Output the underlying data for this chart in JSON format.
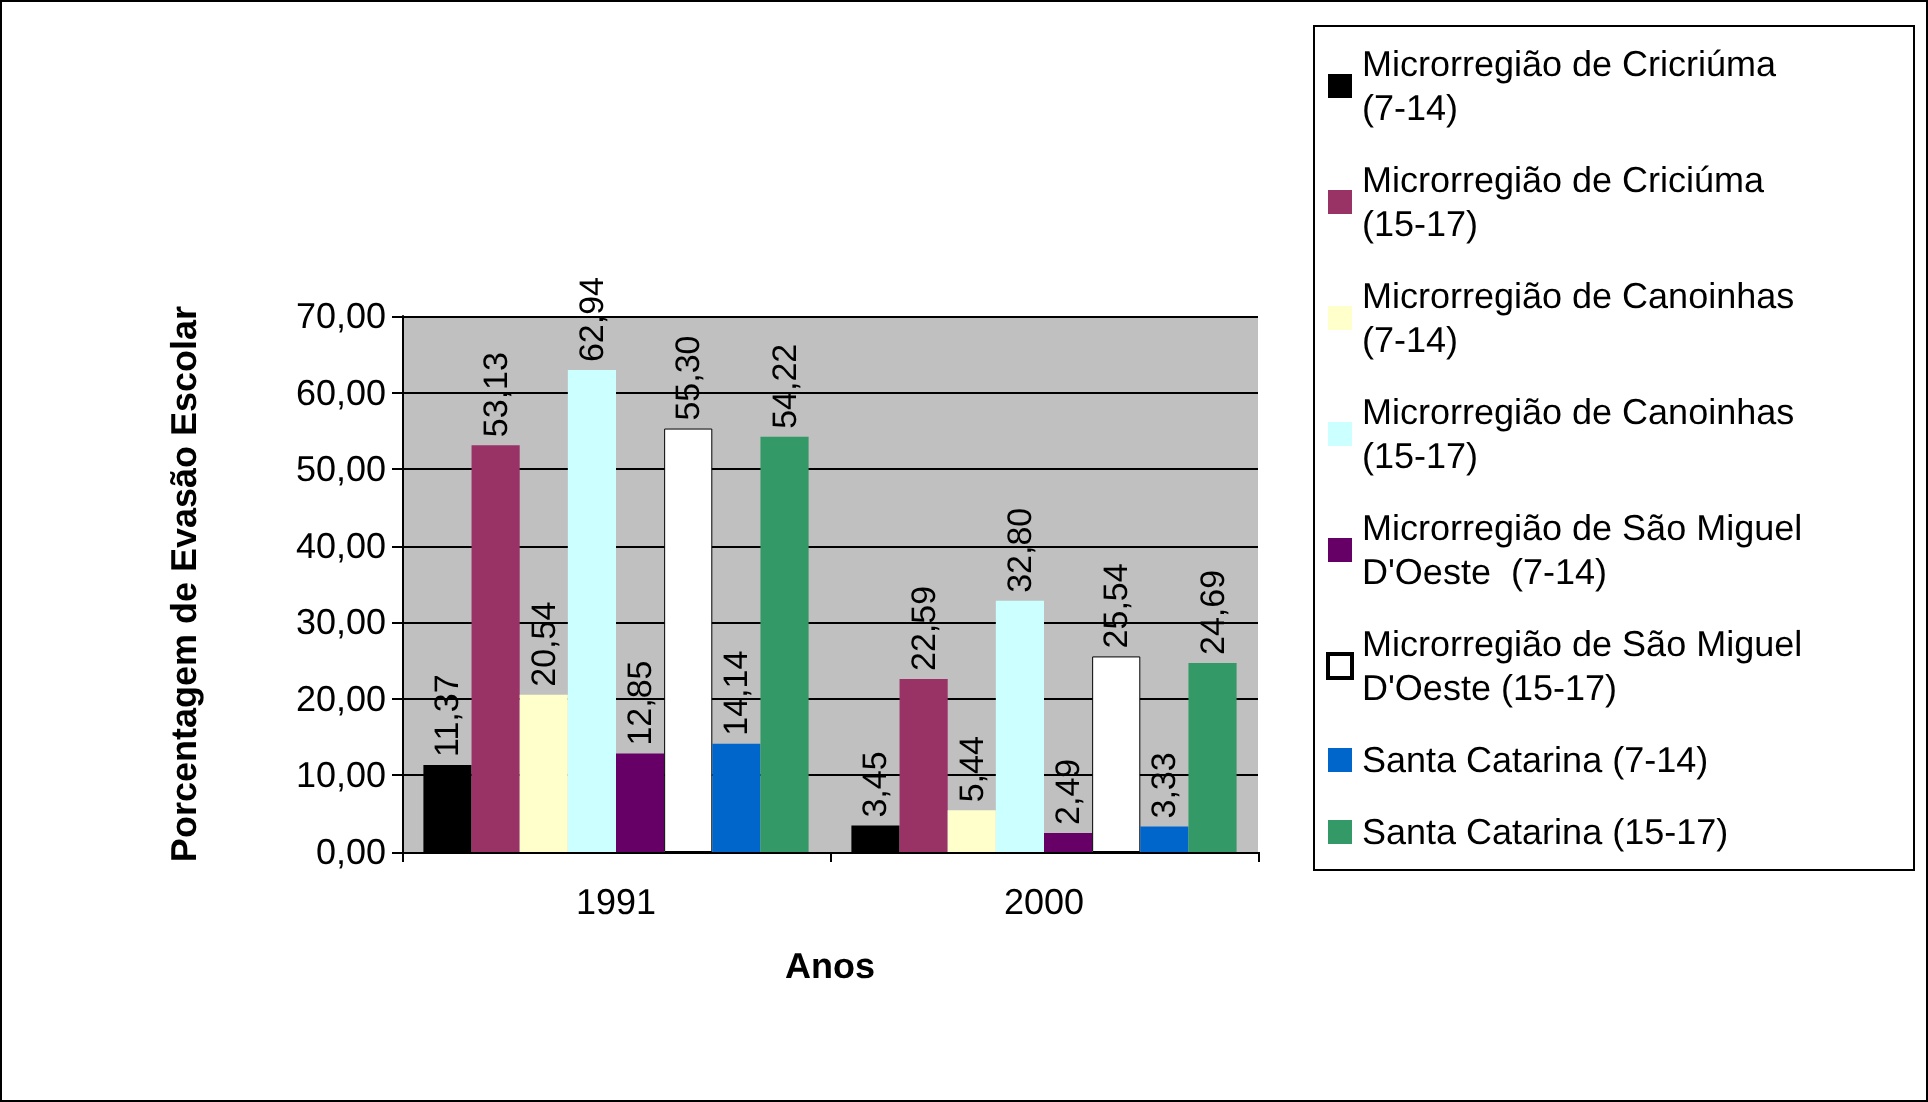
{
  "chart_data": {
    "type": "bar",
    "xlabel": "Anos",
    "ylabel": "Porcentagem de Evasão Escolar",
    "categories": [
      "1991",
      "2000"
    ],
    "series": [
      {
        "name": "Microrregião de Cricriúma (7-14)",
        "color": "#000000",
        "values": [
          11.37,
          3.45
        ],
        "value_labels": [
          "11,37",
          "3,45"
        ]
      },
      {
        "name": "Microrregião de Criciúma (15-17)",
        "color": "#993366",
        "values": [
          53.13,
          22.59
        ],
        "value_labels": [
          "53,13",
          "22,59"
        ]
      },
      {
        "name": "Microrregião de Canoinhas (7-14)",
        "color": "#ffffcc",
        "values": [
          20.54,
          5.44
        ],
        "value_labels": [
          "20,54",
          "5,44"
        ]
      },
      {
        "name": "Microrregião de Canoinhas (15-17)",
        "color": "#ccffff",
        "values": [
          62.94,
          32.8
        ],
        "value_labels": [
          "62,94",
          "32,80"
        ]
      },
      {
        "name": "Microrregião de São Miguel D'Oeste  (7-14)",
        "color": "#660066",
        "values": [
          12.85,
          2.49
        ],
        "value_labels": [
          "12,85",
          "2,49"
        ]
      },
      {
        "name": "Microrregião de São Miguel D'Oeste (15-17)",
        "color": "#ffffff",
        "values": [
          55.3,
          25.54
        ],
        "value_labels": [
          "55,30",
          "25,54"
        ]
      },
      {
        "name": "Santa Catarina (7-14)",
        "color": "#0066cc",
        "values": [
          14.14,
          3.33
        ],
        "value_labels": [
          "14,14",
          "3,33"
        ]
      },
      {
        "name": "Santa Catarina (15-17)",
        "color": "#339966",
        "values": [
          54.22,
          24.69
        ],
        "value_labels": [
          "54,22",
          "24,69"
        ]
      }
    ],
    "ylim": [
      0,
      70
    ],
    "yticks": [
      {
        "value": 0,
        "label": "0,00"
      },
      {
        "value": 10,
        "label": "10,00"
      },
      {
        "value": 20,
        "label": "20,00"
      },
      {
        "value": 30,
        "label": "30,00"
      },
      {
        "value": 40,
        "label": "40,00"
      },
      {
        "value": 50,
        "label": "50,00"
      },
      {
        "value": 60,
        "label": "60,00"
      },
      {
        "value": 70,
        "label": "70,00"
      }
    ],
    "grid": "y",
    "legend": "right"
  }
}
